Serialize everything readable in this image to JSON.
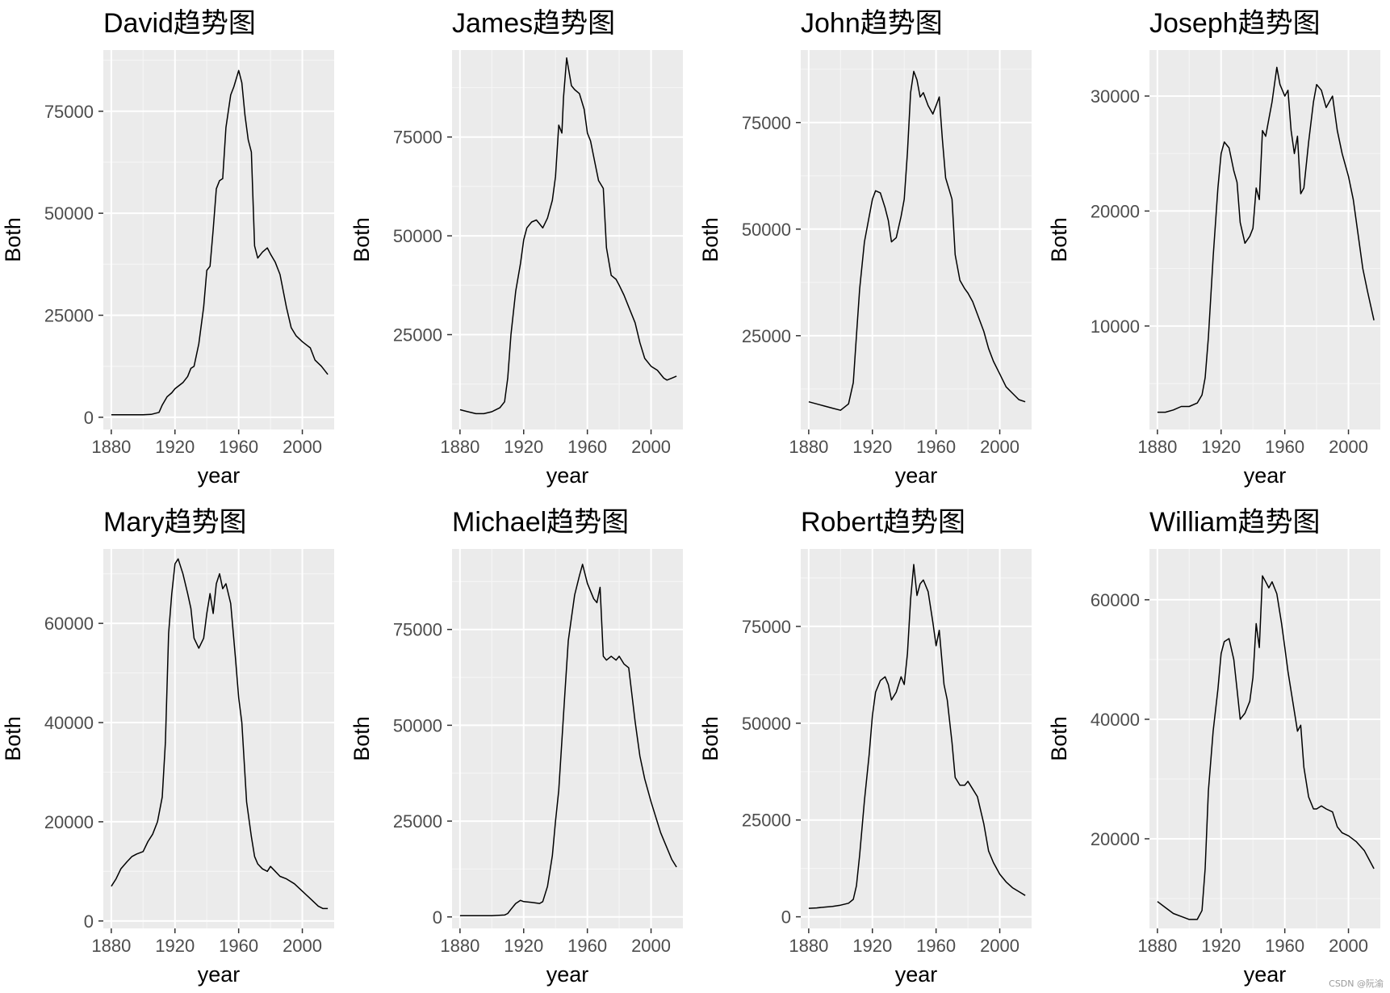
{
  "watermark": "CSDN @阮渝",
  "chart_data": [
    {
      "type": "line",
      "title": "David趋势图",
      "xlabel": "year",
      "ylabel": "Both",
      "xlim": [
        1875,
        2020
      ],
      "ylim": [
        -3000,
        90000
      ],
      "xticks": [
        1880,
        1920,
        1960,
        2000
      ],
      "yticks": [
        0,
        25000,
        50000,
        75000
      ],
      "x": [
        1880,
        1890,
        1900,
        1905,
        1910,
        1912,
        1915,
        1918,
        1920,
        1925,
        1928,
        1930,
        1932,
        1935,
        1938,
        1940,
        1942,
        1944,
        1946,
        1948,
        1950,
        1952,
        1955,
        1957,
        1960,
        1962,
        1964,
        1966,
        1968,
        1970,
        1972,
        1975,
        1978,
        1980,
        1983,
        1986,
        1990,
        1993,
        1996,
        2000,
        2005,
        2008,
        2012,
        2016
      ],
      "values": [
        600,
        600,
        600,
        700,
        1200,
        3000,
        5000,
        6000,
        7000,
        8500,
        10000,
        12000,
        12500,
        18000,
        27000,
        36000,
        37000,
        46000,
        56000,
        58000,
        58500,
        71000,
        79000,
        81000,
        85000,
        82000,
        74000,
        68000,
        65000,
        42000,
        39000,
        40500,
        41500,
        40000,
        38000,
        35000,
        27000,
        22000,
        20000,
        18500,
        17000,
        14000,
        12500,
        10500
      ]
    },
    {
      "type": "line",
      "title": "James趋势图",
      "xlabel": "year",
      "ylabel": "Both",
      "xlim": [
        1875,
        2020
      ],
      "ylim": [
        1000,
        97000
      ],
      "xticks": [
        1880,
        1920,
        1960,
        2000
      ],
      "yticks": [
        25000,
        50000,
        75000
      ],
      "x": [
        1880,
        1885,
        1890,
        1895,
        1900,
        1905,
        1908,
        1910,
        1912,
        1915,
        1918,
        1920,
        1922,
        1925,
        1928,
        1930,
        1932,
        1935,
        1938,
        1940,
        1942,
        1944,
        1945,
        1947,
        1950,
        1952,
        1955,
        1958,
        1960,
        1962,
        1965,
        1967,
        1970,
        1972,
        1975,
        1978,
        1980,
        1983,
        1986,
        1990,
        1993,
        1996,
        2000,
        2004,
        2008,
        2010,
        2013,
        2016
      ],
      "values": [
        6000,
        5500,
        5000,
        5000,
        5500,
        6500,
        8000,
        14000,
        25000,
        36000,
        43000,
        49000,
        52000,
        53500,
        54000,
        53000,
        52000,
        54500,
        59000,
        65000,
        78000,
        76000,
        85000,
        95000,
        88000,
        87000,
        86000,
        82000,
        76000,
        74000,
        68000,
        64000,
        62000,
        47000,
        40000,
        39000,
        37500,
        35000,
        32000,
        28000,
        23000,
        19000,
        17000,
        16000,
        14000,
        13500,
        14000,
        14500
      ]
    },
    {
      "type": "line",
      "title": "John趋势图",
      "xlabel": "year",
      "ylabel": "Both",
      "xlim": [
        1875,
        2020
      ],
      "ylim": [
        3000,
        92000
      ],
      "xticks": [
        1880,
        1920,
        1960,
        2000
      ],
      "yticks": [
        25000,
        50000,
        75000
      ],
      "x": [
        1880,
        1885,
        1890,
        1895,
        1900,
        1905,
        1908,
        1910,
        1912,
        1915,
        1918,
        1920,
        1922,
        1925,
        1928,
        1930,
        1932,
        1935,
        1938,
        1940,
        1942,
        1944,
        1946,
        1948,
        1950,
        1952,
        1955,
        1958,
        1960,
        1962,
        1964,
        1966,
        1970,
        1972,
        1975,
        1978,
        1980,
        1983,
        1986,
        1990,
        1993,
        1996,
        2000,
        2004,
        2008,
        2012,
        2016
      ],
      "values": [
        9500,
        9000,
        8500,
        8000,
        7500,
        9000,
        14000,
        25000,
        36000,
        47000,
        53000,
        57000,
        59000,
        58500,
        55000,
        52000,
        47000,
        48000,
        53000,
        57000,
        68000,
        82000,
        87000,
        85000,
        81000,
        82000,
        79000,
        77000,
        79000,
        81000,
        71000,
        62000,
        57000,
        44000,
        38000,
        36000,
        35000,
        33000,
        30000,
        26000,
        22000,
        19000,
        16000,
        13000,
        11500,
        10000,
        9500
      ]
    },
    {
      "type": "line",
      "title": "Joseph趋势图",
      "xlabel": "year",
      "ylabel": "Both",
      "xlim": [
        1875,
        2020
      ],
      "ylim": [
        1000,
        34000
      ],
      "xticks": [
        1880,
        1920,
        1960,
        2000
      ],
      "yticks": [
        10000,
        20000,
        30000
      ],
      "x": [
        1880,
        1885,
        1890,
        1895,
        1900,
        1905,
        1908,
        1910,
        1912,
        1915,
        1918,
        1920,
        1922,
        1925,
        1928,
        1930,
        1932,
        1935,
        1938,
        1940,
        1942,
        1944,
        1946,
        1948,
        1950,
        1952,
        1955,
        1957,
        1960,
        1962,
        1964,
        1966,
        1968,
        1970,
        1972,
        1975,
        1978,
        1980,
        1983,
        1986,
        1990,
        1993,
        1996,
        2000,
        2003,
        2006,
        2009,
        2012,
        2016
      ],
      "values": [
        2500,
        2500,
        2700,
        3000,
        3000,
        3300,
        4000,
        5500,
        9000,
        16000,
        22000,
        25000,
        26000,
        25500,
        23500,
        22500,
        19000,
        17200,
        17800,
        18500,
        22000,
        21000,
        27000,
        26500,
        28000,
        29500,
        32500,
        31000,
        30000,
        30500,
        27000,
        25000,
        26500,
        21500,
        22000,
        26000,
        29500,
        31000,
        30500,
        29000,
        30000,
        27000,
        25000,
        23000,
        21000,
        18000,
        15000,
        13000,
        10500
      ]
    },
    {
      "type": "line",
      "title": "Mary趋势图",
      "xlabel": "year",
      "ylabel": "Both",
      "xlim": [
        1875,
        2020
      ],
      "ylim": [
        -1500,
        75000
      ],
      "xticks": [
        1880,
        1920,
        1960,
        2000
      ],
      "yticks": [
        0,
        20000,
        40000,
        60000
      ],
      "x": [
        1880,
        1883,
        1886,
        1890,
        1893,
        1896,
        1900,
        1903,
        1906,
        1909,
        1912,
        1914,
        1916,
        1918,
        1920,
        1922,
        1925,
        1928,
        1930,
        1932,
        1935,
        1938,
        1940,
        1942,
        1944,
        1946,
        1948,
        1950,
        1952,
        1955,
        1958,
        1960,
        1962,
        1965,
        1968,
        1970,
        1972,
        1975,
        1978,
        1980,
        1983,
        1986,
        1990,
        1995,
        2000,
        2005,
        2010,
        2013,
        2016
      ],
      "values": [
        7000,
        8500,
        10500,
        12000,
        13000,
        13500,
        14000,
        16000,
        17500,
        20000,
        25000,
        36000,
        58000,
        66000,
        72000,
        73000,
        70000,
        66000,
        63000,
        57000,
        55000,
        57000,
        62000,
        66000,
        62000,
        68000,
        70000,
        67000,
        68000,
        64000,
        53000,
        45000,
        40000,
        24000,
        17000,
        13000,
        11500,
        10500,
        10000,
        11000,
        10000,
        9000,
        8500,
        7500,
        6000,
        4500,
        3000,
        2500,
        2500
      ]
    },
    {
      "type": "line",
      "title": "Michael趋势图",
      "xlabel": "year",
      "ylabel": "Both",
      "xlim": [
        1875,
        2020
      ],
      "ylim": [
        -3000,
        96000
      ],
      "xticks": [
        1880,
        1920,
        1960,
        2000
      ],
      "yticks": [
        0,
        25000,
        50000,
        75000
      ],
      "x": [
        1880,
        1890,
        1900,
        1908,
        1910,
        1912,
        1915,
        1918,
        1920,
        1925,
        1930,
        1932,
        1935,
        1938,
        1940,
        1942,
        1944,
        1946,
        1948,
        1950,
        1952,
        1955,
        1957,
        1960,
        1962,
        1964,
        1966,
        1968,
        1970,
        1972,
        1975,
        1978,
        1980,
        1983,
        1986,
        1990,
        1993,
        1996,
        2000,
        2003,
        2006,
        2010,
        2013,
        2016
      ],
      "values": [
        300,
        300,
        300,
        500,
        900,
        2000,
        3500,
        4300,
        4000,
        3800,
        3500,
        4000,
        8000,
        16000,
        25000,
        33000,
        46000,
        59000,
        72000,
        78000,
        84000,
        89000,
        92000,
        87000,
        85000,
        83000,
        82000,
        86000,
        68000,
        67000,
        68000,
        67000,
        68000,
        66000,
        65000,
        51000,
        42000,
        36000,
        30000,
        26000,
        22000,
        18000,
        15000,
        13000
      ]
    },
    {
      "type": "line",
      "title": "Robert趋势图",
      "xlabel": "year",
      "ylabel": "Both",
      "xlim": [
        1875,
        2020
      ],
      "ylim": [
        -3000,
        95000
      ],
      "xticks": [
        1880,
        1920,
        1960,
        2000
      ],
      "yticks": [
        0,
        25000,
        50000,
        75000
      ],
      "x": [
        1880,
        1885,
        1890,
        1895,
        1900,
        1905,
        1908,
        1910,
        1912,
        1915,
        1918,
        1920,
        1922,
        1925,
        1928,
        1930,
        1932,
        1935,
        1938,
        1940,
        1942,
        1944,
        1946,
        1948,
        1950,
        1952,
        1955,
        1958,
        1960,
        1962,
        1965,
        1967,
        1970,
        1972,
        1975,
        1978,
        1980,
        1983,
        1986,
        1990,
        1993,
        1996,
        2000,
        2004,
        2008,
        2012,
        2016
      ],
      "values": [
        2200,
        2300,
        2500,
        2700,
        3000,
        3500,
        4500,
        8000,
        16000,
        30000,
        42000,
        52000,
        58000,
        61000,
        62000,
        60000,
        56000,
        58000,
        62000,
        60000,
        68000,
        82000,
        91000,
        83000,
        86000,
        87000,
        84000,
        76000,
        70000,
        74000,
        60000,
        56000,
        45000,
        36000,
        34000,
        34000,
        35000,
        33000,
        31000,
        24000,
        17000,
        14000,
        11000,
        9000,
        7500,
        6500,
        5500
      ]
    },
    {
      "type": "line",
      "title": "William趋势图",
      "xlabel": "year",
      "ylabel": "Both",
      "xlim": [
        1875,
        2020
      ],
      "ylim": [
        5000,
        68500
      ],
      "xticks": [
        1880,
        1920,
        1960,
        2000
      ],
      "yticks": [
        20000,
        40000,
        60000
      ],
      "x": [
        1880,
        1885,
        1890,
        1895,
        1900,
        1905,
        1908,
        1910,
        1912,
        1915,
        1918,
        1920,
        1922,
        1925,
        1928,
        1930,
        1932,
        1935,
        1938,
        1940,
        1942,
        1944,
        1946,
        1948,
        1950,
        1952,
        1955,
        1958,
        1960,
        1962,
        1965,
        1968,
        1970,
        1972,
        1975,
        1978,
        1980,
        1983,
        1986,
        1990,
        1993,
        1996,
        2000,
        2005,
        2010,
        2013,
        2016
      ],
      "values": [
        9500,
        8500,
        7500,
        7000,
        6500,
        6500,
        8000,
        15000,
        28000,
        38000,
        45000,
        51000,
        53000,
        53500,
        50000,
        45000,
        40000,
        41000,
        43000,
        47000,
        56000,
        52000,
        64000,
        63000,
        62000,
        63000,
        61000,
        56000,
        52000,
        48000,
        43000,
        38000,
        39000,
        32000,
        27000,
        25000,
        25000,
        25500,
        25000,
        24500,
        22000,
        21000,
        20500,
        19500,
        18000,
        16500,
        15000
      ]
    }
  ]
}
